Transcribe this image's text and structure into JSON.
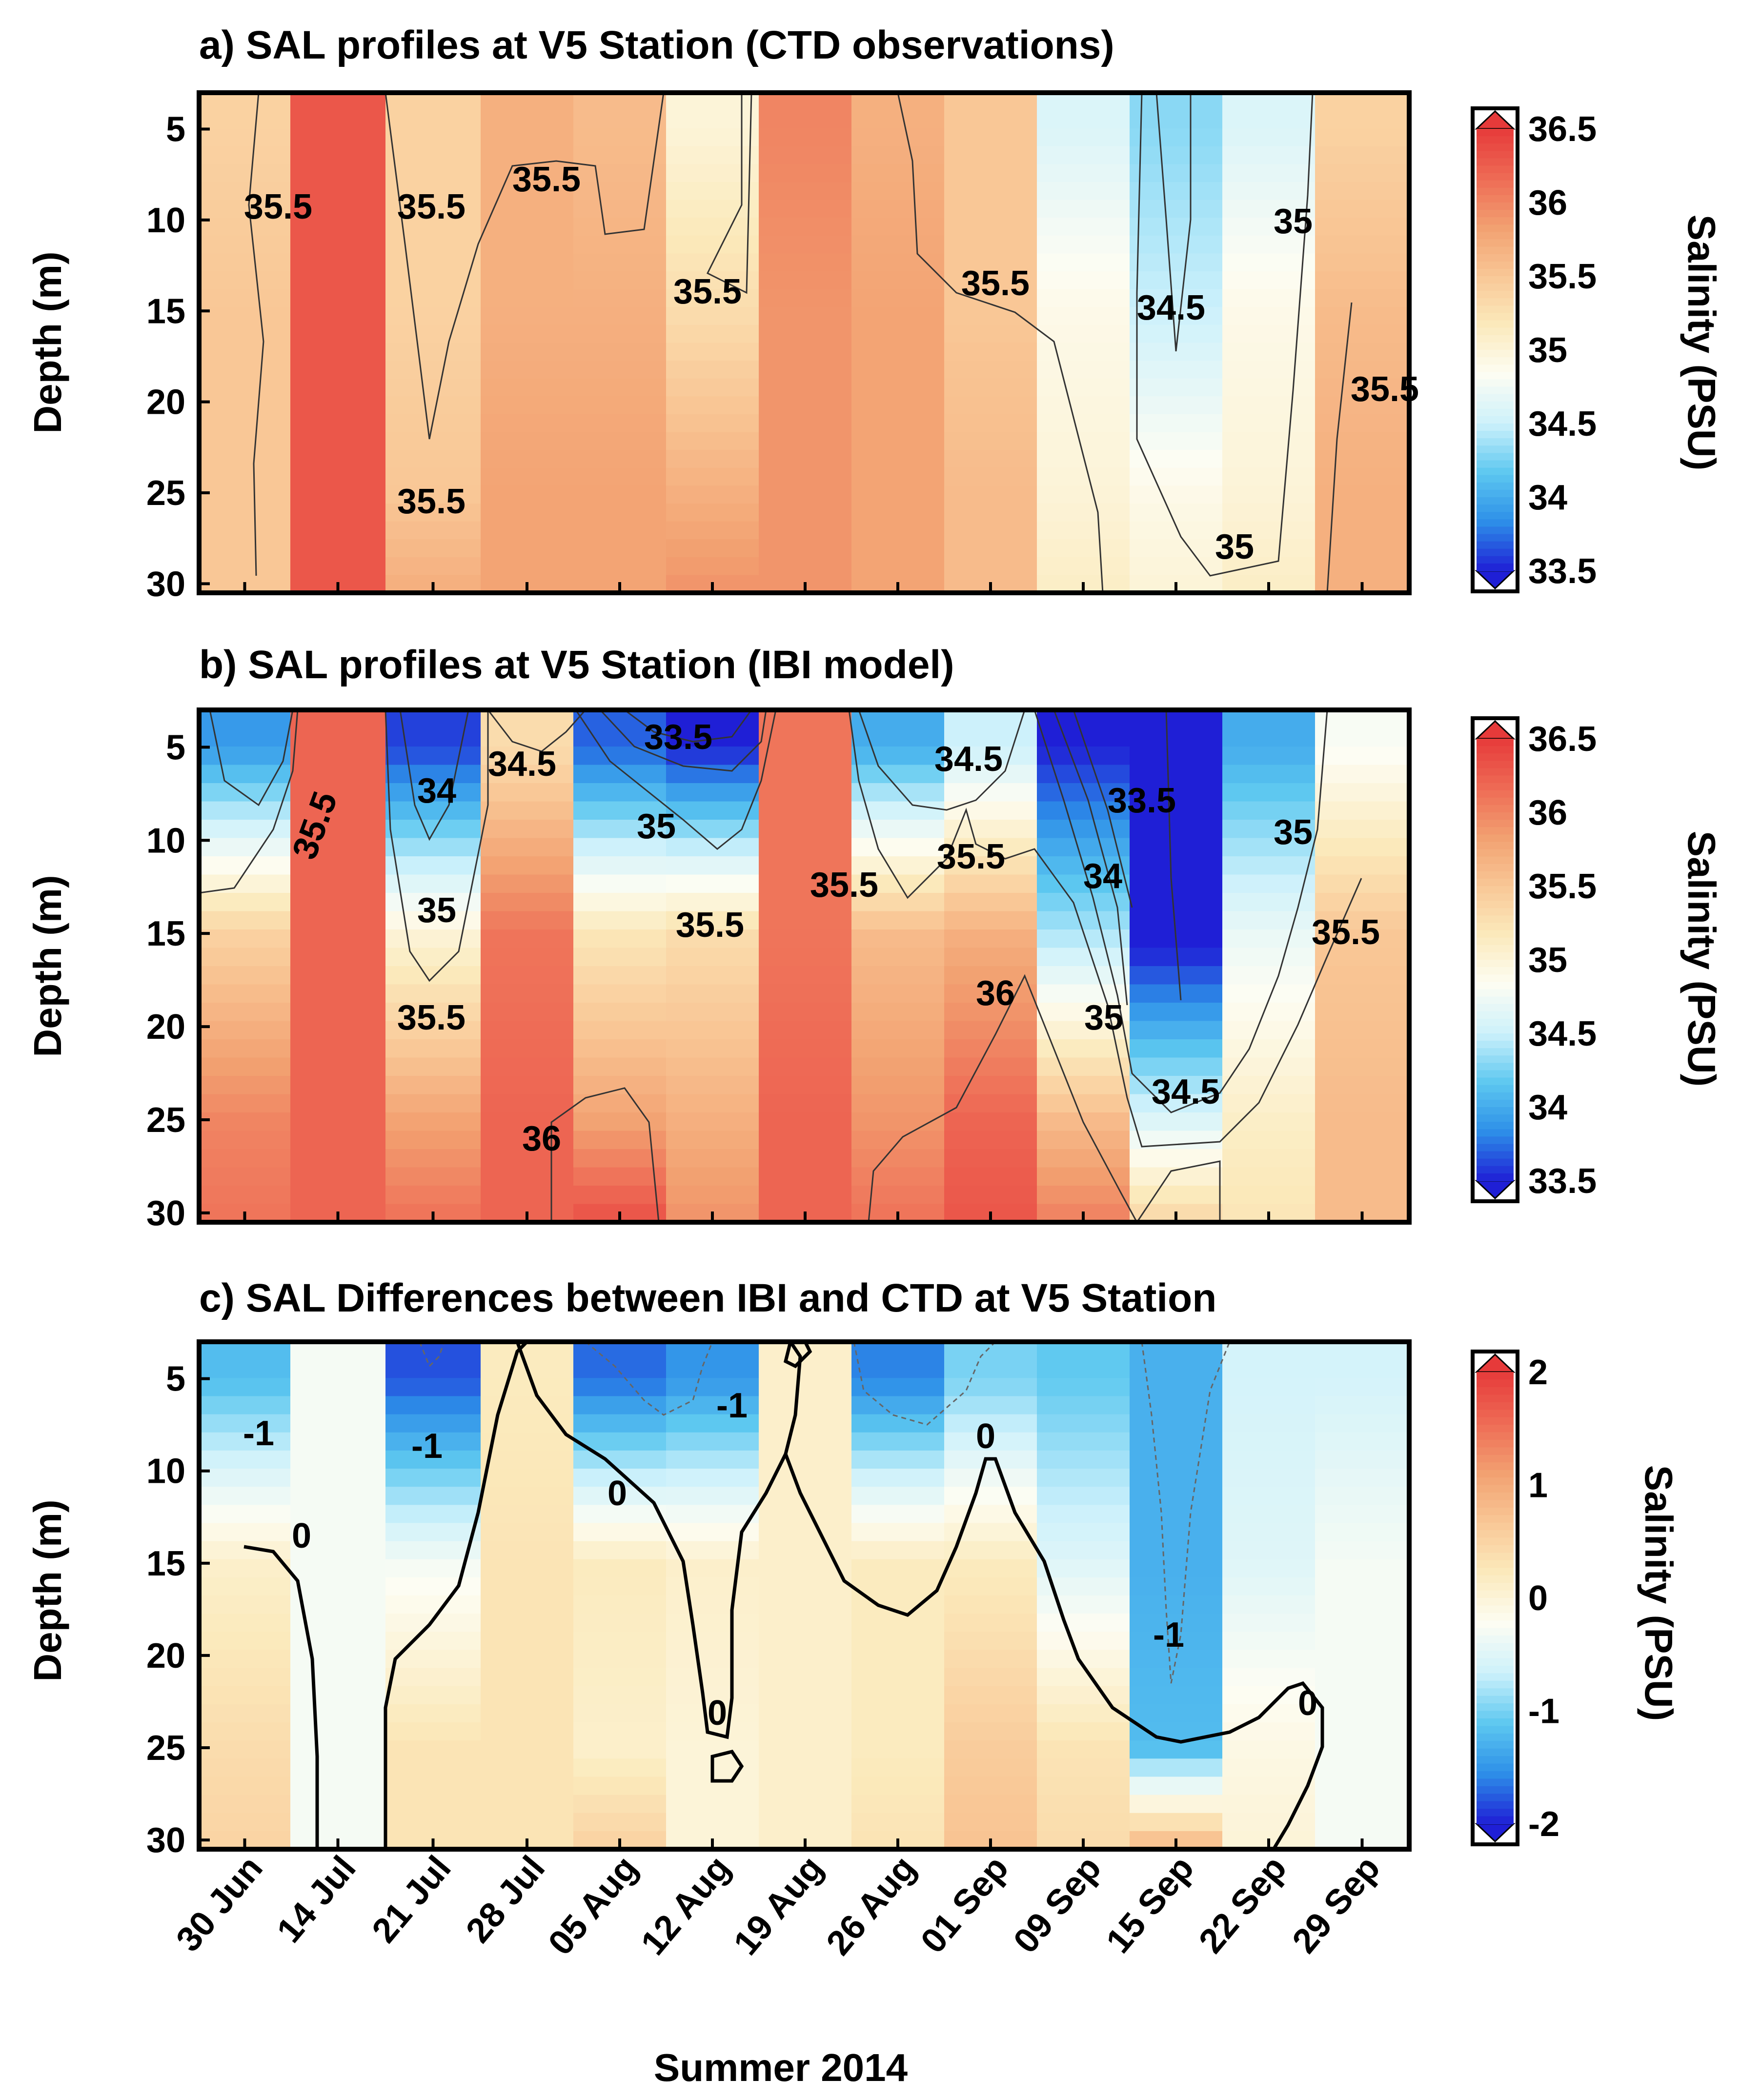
{
  "colors": {
    "deep_blue": "#1f1fd6",
    "mid_blue": "#2d8fe8",
    "light_blue": "#5dc8f0",
    "pale_cyan": "#cdf1fb",
    "white": "#fdfdf3",
    "pale_yellow": "#fbeabc",
    "light_orange": "#f9c796",
    "orange": "#f2a070",
    "light_red": "#ee6a55",
    "red": "#e63a3a"
  },
  "x_label": "Summer 2014",
  "x_ticks": [
    "30 Jun",
    "14 Jul",
    "21 Jul",
    "28 Jul",
    "05 Aug",
    "12 Aug",
    "19 Aug",
    "26 Aug",
    "01 Sep",
    "09 Sep",
    "15 Sep",
    "22 Sep",
    "29 Sep"
  ],
  "chart_data": [
    {
      "type": "heatmap",
      "title": "a) SAL profiles at V5 Station (CTD observations)",
      "ylabel": "Depth (m)",
      "yticks": [
        "5",
        "10",
        "15",
        "20",
        "25",
        "30"
      ],
      "ylim": [
        3,
        30.5
      ],
      "colorbar_label": "Salinity (PSU)",
      "colorbar_ticks": [
        "36.5",
        "36",
        "35.5",
        "35",
        "34.5",
        "34",
        "33.5"
      ],
      "colorbar_range": [
        33.5,
        36.5
      ],
      "depths": [
        5,
        15,
        25,
        30
      ],
      "columns": [
        {
          "date": "30 Jun",
          "salinity": [
            35.4,
            35.5,
            35.5,
            35.5
          ]
        },
        {
          "date": "14 Jul",
          "salinity": [
            36.3,
            36.3,
            36.3,
            36.3
          ]
        },
        {
          "date": "21 Jul",
          "salinity": [
            35.4,
            35.4,
            35.5,
            35.7
          ]
        },
        {
          "date": "28 Jul",
          "salinity": [
            35.7,
            35.7,
            35.8,
            35.8
          ]
        },
        {
          "date": "05 Aug",
          "salinity": [
            35.6,
            35.7,
            35.8,
            35.8
          ]
        },
        {
          "date": "12 Aug",
          "salinity": [
            35.0,
            35.3,
            35.7,
            35.9
          ]
        },
        {
          "date": "19 Aug",
          "salinity": [
            36.0,
            35.9,
            35.9,
            35.9
          ]
        },
        {
          "date": "26 Aug",
          "salinity": [
            35.7,
            35.8,
            35.8,
            35.8
          ]
        },
        {
          "date": "01 Sep",
          "salinity": [
            35.5,
            35.5,
            35.6,
            35.6
          ]
        },
        {
          "date": "09 Sep",
          "salinity": [
            34.6,
            34.9,
            35.0,
            35.1
          ]
        },
        {
          "date": "15 Sep",
          "salinity": [
            34.3,
            34.5,
            34.9,
            35.0
          ]
        },
        {
          "date": "22 Sep",
          "salinity": [
            34.6,
            34.9,
            35.0,
            35.1
          ]
        },
        {
          "date": "29 Sep",
          "salinity": [
            35.4,
            35.6,
            35.7,
            35.7
          ]
        }
      ],
      "contour_labels": [
        "35.5",
        "35.5",
        "35.5",
        "35.5",
        "35.5",
        "35.5",
        "35",
        "34.5",
        "35.5",
        "35"
      ]
    },
    {
      "type": "heatmap",
      "title": "b) SAL profiles at V5 Station (IBI model)",
      "ylabel": "Depth (m)",
      "yticks": [
        "5",
        "10",
        "15",
        "20",
        "25",
        "30"
      ],
      "ylim": [
        3,
        30.5
      ],
      "colorbar_label": "Salinity (PSU)",
      "colorbar_ticks": [
        "36.5",
        "36",
        "35.5",
        "35",
        "34.5",
        "34",
        "33.5"
      ],
      "colorbar_range": [
        33.5,
        36.5
      ],
      "depths": [
        5,
        15,
        25,
        30
      ],
      "columns": [
        {
          "date": "30 Jun",
          "salinity": [
            33.9,
            35.4,
            36.0,
            36.1
          ]
        },
        {
          "date": "14 Jul",
          "salinity": [
            36.2,
            36.2,
            36.2,
            36.2
          ]
        },
        {
          "date": "21 Jul",
          "salinity": [
            33.6,
            35.0,
            35.8,
            36.1
          ]
        },
        {
          "date": "28 Jul",
          "salinity": [
            35.3,
            36.1,
            36.2,
            36.2
          ]
        },
        {
          "date": "05 Aug",
          "salinity": [
            33.7,
            35.2,
            35.8,
            36.3
          ]
        },
        {
          "date": "12 Aug",
          "salinity": [
            33.5,
            35.3,
            35.7,
            35.9
          ]
        },
        {
          "date": "19 Aug",
          "salinity": [
            36.1,
            36.1,
            36.2,
            36.2
          ]
        },
        {
          "date": "26 Aug",
          "salinity": [
            34.0,
            35.6,
            35.9,
            36.1
          ]
        },
        {
          "date": "01 Sep",
          "salinity": [
            34.5,
            35.7,
            36.2,
            36.3
          ]
        },
        {
          "date": "09 Sep",
          "salinity": [
            33.5,
            34.4,
            35.6,
            36.0
          ]
        },
        {
          "date": "15 Sep",
          "salinity": [
            33.4,
            33.4,
            34.6,
            35.3
          ]
        },
        {
          "date": "22 Sep",
          "salinity": [
            34.0,
            34.7,
            35.1,
            35.2
          ]
        },
        {
          "date": "29 Sep",
          "salinity": [
            34.8,
            35.5,
            35.6,
            35.6
          ]
        }
      ],
      "contour_labels": [
        "35.5",
        "34",
        "35",
        "35.5",
        "34.5",
        "33.5",
        "35",
        "35.5",
        "36",
        "35.5",
        "34.5",
        "35.5",
        "36",
        "33.5",
        "34",
        "35",
        "34.5",
        "35",
        "35.5"
      ]
    },
    {
      "type": "heatmap",
      "title": "c) SAL Differences between IBI and CTD at V5 Station",
      "ylabel": "Depth (m)",
      "yticks": [
        "5",
        "10",
        "15",
        "20",
        "25",
        "30"
      ],
      "ylim": [
        3,
        30.5
      ],
      "colorbar_label": "Salinity (PSU)",
      "colorbar_ticks": [
        "2",
        "1",
        "0",
        "-1",
        "-2"
      ],
      "colorbar_range": [
        -2,
        2
      ],
      "depths": [
        5,
        15,
        25,
        30
      ],
      "columns": [
        {
          "date": "30 Jun",
          "difference": [
            -1.2,
            0.1,
            0.4,
            0.5
          ]
        },
        {
          "date": "14 Jul",
          "difference": [
            -0.3,
            -0.3,
            -0.3,
            -0.3
          ]
        },
        {
          "date": "21 Jul",
          "difference": [
            -1.8,
            -0.3,
            0.3,
            0.3
          ]
        },
        {
          "date": "28 Jul",
          "difference": [
            0.2,
            0.3,
            0.3,
            0.3
          ]
        },
        {
          "date": "05 Aug",
          "difference": [
            -1.7,
            0.2,
            0.1,
            0.5
          ]
        },
        {
          "date": "12 Aug",
          "difference": [
            -1.5,
            0.1,
            0.0,
            0.0
          ]
        },
        {
          "date": "19 Aug",
          "difference": [
            0.1,
            0.1,
            0.1,
            0.1
          ]
        },
        {
          "date": "26 Aug",
          "difference": [
            -1.6,
            0.2,
            0.2,
            0.3
          ]
        },
        {
          "date": "01 Sep",
          "difference": [
            -1.0,
            0.2,
            0.6,
            0.7
          ]
        },
        {
          "date": "09 Sep",
          "difference": [
            -1.1,
            -0.5,
            0.3,
            0.4
          ]
        },
        {
          "date": "15 Sep",
          "difference": [
            -1.3,
            -1.3,
            -1.2,
            0.7
          ]
        },
        {
          "date": "22 Sep",
          "difference": [
            -0.6,
            -0.5,
            -0.1,
            0.0
          ]
        },
        {
          "date": "29 Sep",
          "difference": [
            -0.6,
            -0.3,
            -0.3,
            -0.3
          ]
        }
      ],
      "contour_labels": [
        "-1",
        "-1",
        "-1",
        "0",
        "0",
        "0",
        "0",
        "-1",
        "0"
      ]
    }
  ]
}
